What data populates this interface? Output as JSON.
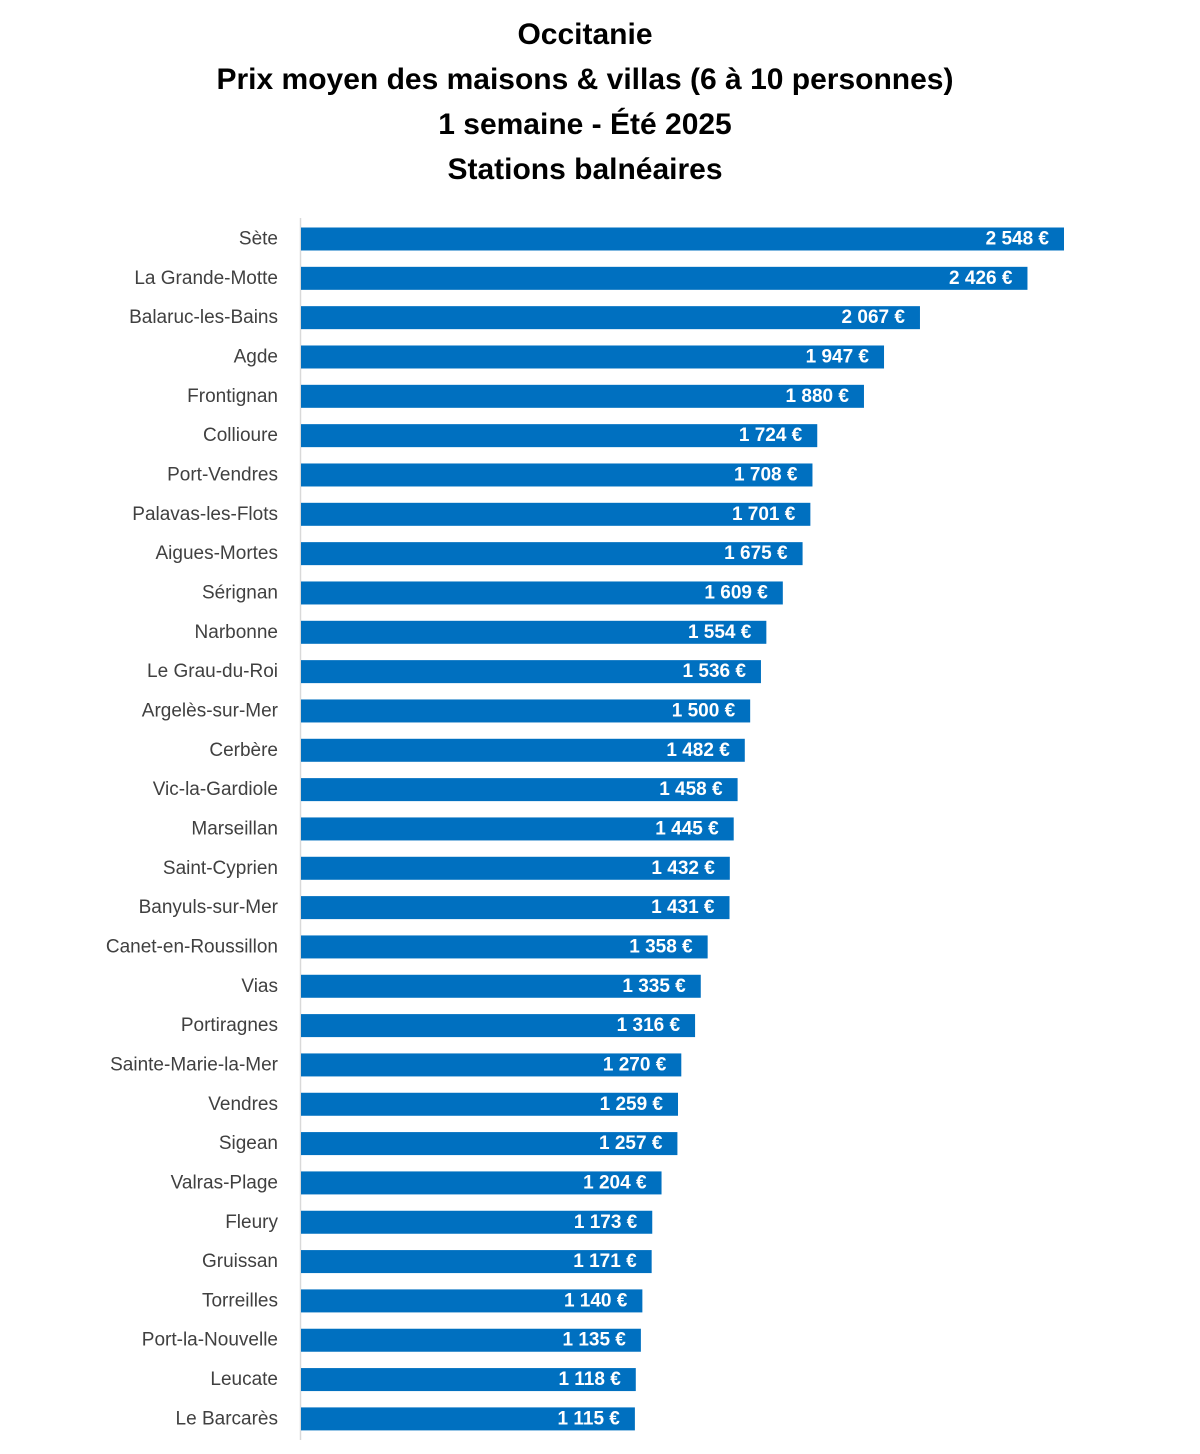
{
  "chart_data": {
    "type": "bar",
    "orientation": "horizontal",
    "title": [
      "Occitanie",
      "Prix moyen des maisons & villas (6 à 10 personnes)",
      "1 semaine - Été 2025",
      "Stations balnéaires"
    ],
    "categories": [
      "Sète",
      "La Grande-Motte",
      "Balaruc-les-Bains",
      "Agde",
      "Frontignan",
      "Collioure",
      "Port-Vendres",
      "Palavas-les-Flots",
      "Aigues-Mortes",
      "Sérignan",
      "Narbonne",
      "Le Grau-du-Roi",
      "Argelès-sur-Mer",
      "Cerbère",
      "Vic-la-Gardiole",
      "Marseillan",
      "Saint-Cyprien",
      "Banyuls-sur-Mer",
      "Canet-en-Roussillon",
      "Vias",
      "Portiragnes",
      "Sainte-Marie-la-Mer",
      "Vendres",
      "Sigean",
      "Valras-Plage",
      "Fleury",
      "Gruissan",
      "Torreilles",
      "Port-la-Nouvelle",
      "Leucate",
      "Le Barcarès"
    ],
    "values": [
      2548,
      2426,
      2067,
      1947,
      1880,
      1724,
      1708,
      1701,
      1675,
      1609,
      1554,
      1536,
      1500,
      1482,
      1458,
      1445,
      1432,
      1431,
      1358,
      1335,
      1316,
      1270,
      1259,
      1257,
      1204,
      1173,
      1171,
      1140,
      1135,
      1118,
      1115
    ],
    "value_labels": [
      "2 548 €",
      "2 426 €",
      "2 067 €",
      "1 947 €",
      "1 880 €",
      "1 724 €",
      "1 708 €",
      "1 701 €",
      "1 675 €",
      "1 609 €",
      "1 554 €",
      "1 536 €",
      "1 500 €",
      "1 482 €",
      "1 458 €",
      "1 445 €",
      "1 432 €",
      "1 431 €",
      "1 358 €",
      "1 335 €",
      "1 316 €",
      "1 270 €",
      "1 259 €",
      "1 257 €",
      "1 204 €",
      "1 173 €",
      "1 171 €",
      "1 140 €",
      "1 135 €",
      "1 118 €",
      "1 115 €"
    ],
    "xlim": [
      0,
      2548
    ],
    "grid": false,
    "legend": "none",
    "bar_color": "#0070C0",
    "axis_color": "#D9D9D9"
  }
}
